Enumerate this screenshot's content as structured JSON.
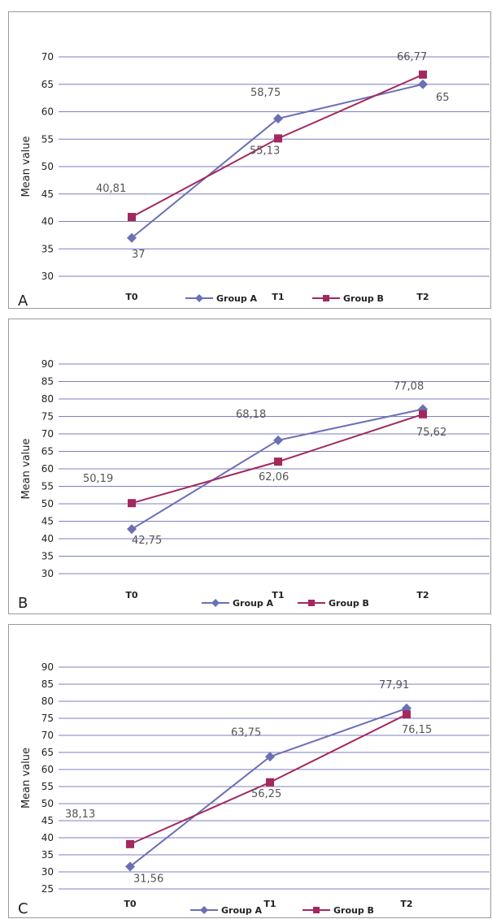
{
  "chart_data": [
    {
      "type": "line",
      "panel_letter": "A",
      "ylabel": "Mean value",
      "categories": [
        "T0",
        "T1",
        "T2"
      ],
      "ylim": [
        30,
        70
      ],
      "yticks": [
        30,
        35,
        40,
        45,
        50,
        55,
        60,
        65,
        70
      ],
      "grid": true,
      "legend_placement": "bottom",
      "series": [
        {
          "name": "Group A",
          "values": [
            37,
            58.75,
            65
          ],
          "labels": [
            "37",
            "58,75",
            "65"
          ],
          "color": "#6b6fb5",
          "marker": "diamond"
        },
        {
          "name": "Group B",
          "values": [
            40.81,
            55.13,
            66.77
          ],
          "labels": [
            "40,81",
            "55,13",
            "66,77"
          ],
          "color": "#a3285e",
          "marker": "square"
        }
      ]
    },
    {
      "type": "line",
      "panel_letter": "B",
      "ylabel": "Mean value",
      "categories": [
        "T0",
        "T1",
        "T2"
      ],
      "ylim": [
        30,
        90
      ],
      "yticks": [
        30,
        35,
        40,
        45,
        50,
        55,
        60,
        65,
        70,
        75,
        80,
        85,
        90
      ],
      "grid": true,
      "legend_placement": "bottom",
      "series": [
        {
          "name": "Group A",
          "values": [
            42.75,
            68.18,
            77.08
          ],
          "labels": [
            "42,75",
            "68,18",
            "77,08"
          ],
          "color": "#6b6fb5",
          "marker": "diamond"
        },
        {
          "name": "Group B",
          "values": [
            50.19,
            62.06,
            75.62
          ],
          "labels": [
            "50,19",
            "62,06",
            "75,62"
          ],
          "color": "#a3285e",
          "marker": "square"
        }
      ]
    },
    {
      "type": "line",
      "panel_letter": "C",
      "ylabel": "Mean value",
      "categories": [
        "T0",
        "T1",
        "T2"
      ],
      "ylim": [
        25,
        90
      ],
      "yticks": [
        25,
        30,
        35,
        40,
        45,
        50,
        55,
        60,
        65,
        70,
        75,
        80,
        85,
        90
      ],
      "grid": true,
      "legend_placement": "bottom",
      "series": [
        {
          "name": "Group A",
          "values": [
            31.56,
            63.75,
            77.91
          ],
          "labels": [
            "31,56",
            "63,75",
            "77,91"
          ],
          "color": "#6b6fb5",
          "marker": "diamond"
        },
        {
          "name": "Group B",
          "values": [
            38.13,
            56.25,
            76.15
          ],
          "labels": [
            "38,13",
            "56,25",
            "76,15"
          ],
          "color": "#a3285e",
          "marker": "square"
        }
      ]
    }
  ]
}
